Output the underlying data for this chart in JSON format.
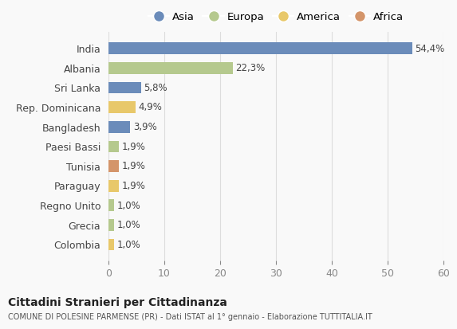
{
  "countries": [
    "India",
    "Albania",
    "Sri Lanka",
    "Rep. Dominicana",
    "Bangladesh",
    "Paesi Bassi",
    "Tunisia",
    "Paraguay",
    "Regno Unito",
    "Grecia",
    "Colombia"
  ],
  "values": [
    54.4,
    22.3,
    5.8,
    4.9,
    3.9,
    1.9,
    1.9,
    1.9,
    1.0,
    1.0,
    1.0
  ],
  "labels": [
    "54,4%",
    "22,3%",
    "5,8%",
    "4,9%",
    "3,9%",
    "1,9%",
    "1,9%",
    "1,9%",
    "1,0%",
    "1,0%",
    "1,0%"
  ],
  "continents": [
    "Asia",
    "Europa",
    "Asia",
    "America",
    "Asia",
    "Europa",
    "Africa",
    "America",
    "Europa",
    "Europa",
    "America"
  ],
  "continent_colors": {
    "Asia": "#6b8cba",
    "Europa": "#b5c98e",
    "America": "#e8c86a",
    "Africa": "#d4956a"
  },
  "legend_order": [
    "Asia",
    "Europa",
    "America",
    "Africa"
  ],
  "title": "Cittadini Stranieri per Cittadinanza",
  "subtitle": "COMUNE DI POLESINE PARMENSE (PR) - Dati ISTAT al 1° gennaio - Elaborazione TUTTITALIA.IT",
  "xlim": [
    0,
    60
  ],
  "xticks": [
    0,
    10,
    20,
    30,
    40,
    50,
    60
  ],
  "background_color": "#f9f9f9",
  "grid_color": "#dddddd",
  "bar_height": 0.6
}
